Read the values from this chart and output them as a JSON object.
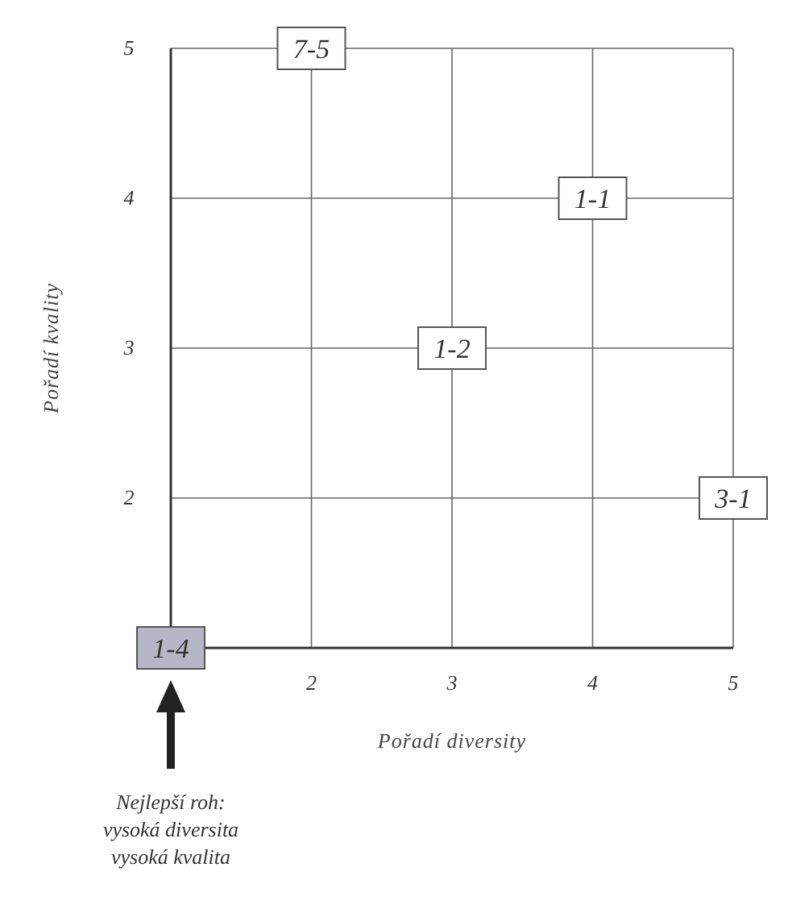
{
  "chart_data": {
    "type": "scatter",
    "xlabel": "Pořadí diversity",
    "ylabel": "Pořadí kvality",
    "x": [
      1,
      2,
      3,
      4,
      5
    ],
    "values": [
      1,
      5,
      3,
      4,
      2
    ],
    "colors": [
      "#b6b6c6",
      "#ffffff",
      "#ffffff",
      "#ffffff",
      "#ffffff"
    ],
    "marker": "square",
    "xlim": [
      1,
      5
    ],
    "ylim": [
      1,
      5
    ],
    "xticks": [
      2,
      3,
      4,
      5
    ],
    "yticks": [
      2,
      3,
      4,
      5
    ],
    "grid": true,
    "annotations": [
      {
        "text": "1-4",
        "x": 1,
        "y": 1
      },
      {
        "text": "7-5",
        "x": 2,
        "y": 5
      },
      {
        "text": "1-2",
        "x": 3,
        "y": 3
      },
      {
        "text": "1-1",
        "x": 4,
        "y": 4
      },
      {
        "text": "3-1",
        "x": 5,
        "y": 2
      },
      "Nejlepší roh:\nvysoká diversita\nvysoká kvalita"
    ]
  }
}
